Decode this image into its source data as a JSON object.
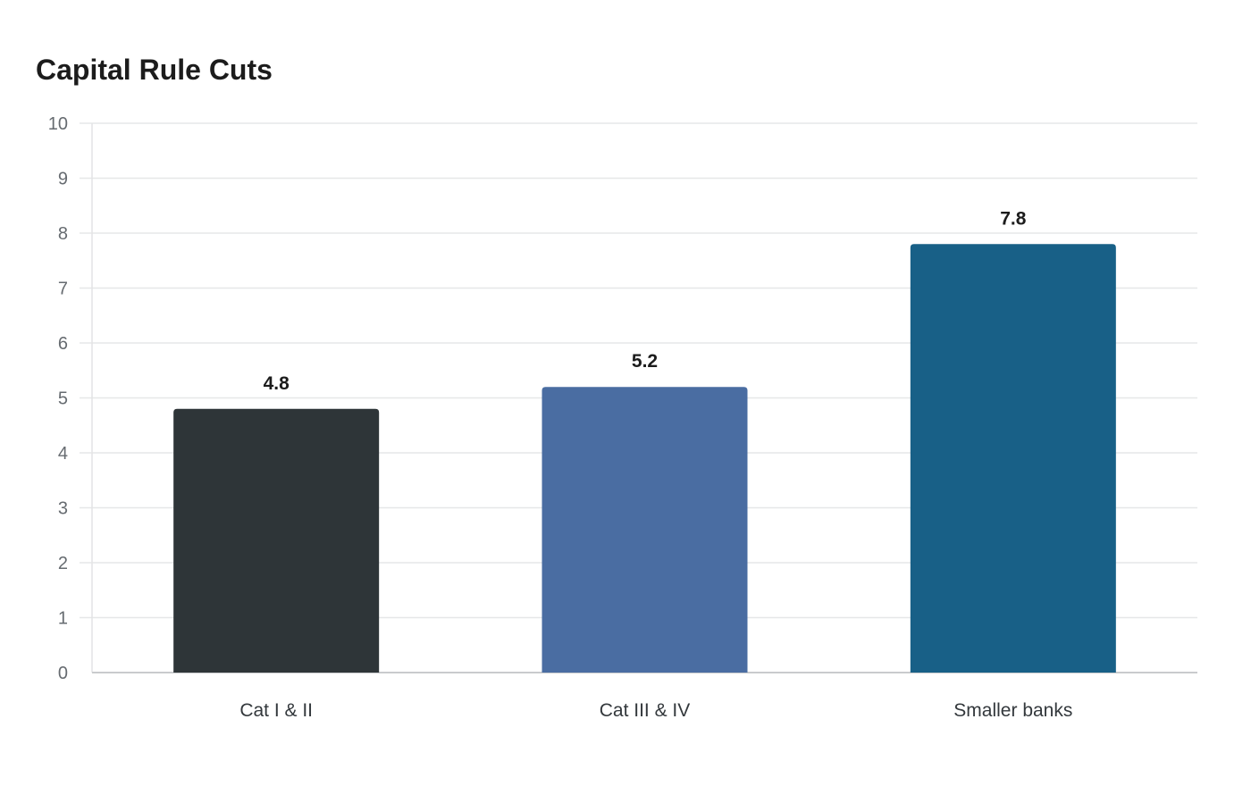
{
  "chart_data": {
    "type": "bar",
    "title": "Capital Rule Cuts",
    "xlabel": "",
    "ylabel": "",
    "categories": [
      "Cat I & II",
      "Cat III & IV",
      "Smaller banks"
    ],
    "values": [
      4.8,
      5.2,
      7.8
    ],
    "value_labels": [
      "4.8",
      "5.2",
      "7.8"
    ],
    "bar_colors": [
      "#2e3538",
      "#4a6da2",
      "#186087"
    ],
    "ylim": [
      0,
      10
    ],
    "yticks": [
      0,
      1,
      2,
      3,
      4,
      5,
      6,
      7,
      8,
      9,
      10
    ],
    "grid": true,
    "legend": "none"
  }
}
